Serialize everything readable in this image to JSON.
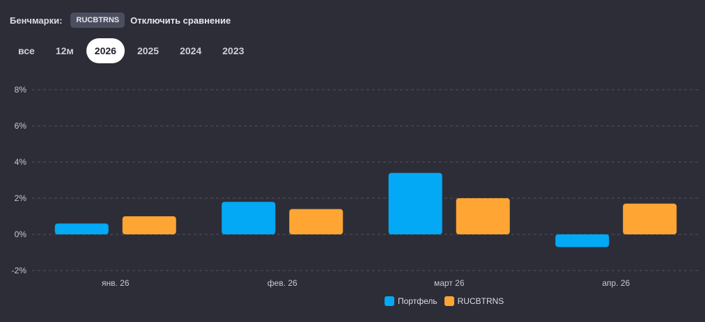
{
  "benchmarks": {
    "label": "Бенчмарки:",
    "chip": "RUCBTRNS",
    "disable": "Отключить сравнение"
  },
  "tabs": [
    {
      "label": "все",
      "active": false
    },
    {
      "label": "12м",
      "active": false
    },
    {
      "label": "2026",
      "active": true
    },
    {
      "label": "2025",
      "active": false
    },
    {
      "label": "2024",
      "active": false
    },
    {
      "label": "2023",
      "active": false
    }
  ],
  "chart_data": {
    "type": "bar",
    "categories": [
      "янв. 26",
      "фев. 26",
      "март 26",
      "апр. 26"
    ],
    "series": [
      {
        "name": "Портфель",
        "color": "#03a9f4",
        "values": [
          0.6,
          1.8,
          3.4,
          -0.7
        ]
      },
      {
        "name": "RUCBTRNS",
        "color": "#ffa534",
        "values": [
          1.0,
          1.4,
          2.0,
          1.7
        ]
      }
    ],
    "yticks": [
      "8%",
      "6%",
      "4%",
      "2%",
      "0%",
      "-2%"
    ],
    "ylim": [
      -2,
      8
    ],
    "grid": true,
    "legend_position": "bottom-center"
  }
}
